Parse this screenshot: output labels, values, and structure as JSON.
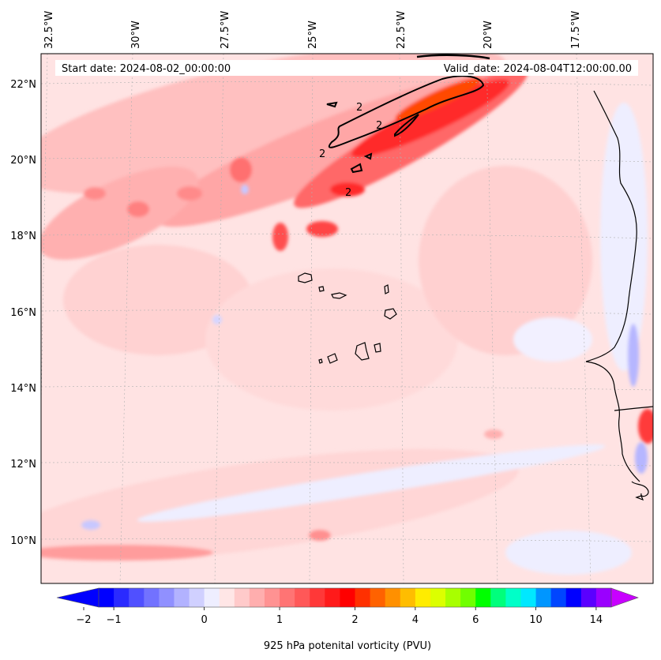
{
  "header": {
    "start_label": "Start date: 2024-08-02_00:00:00",
    "valid_label": "Valid_date: 2024-08-04T12:00:00.00"
  },
  "longitude_labels": [
    "32.5°W",
    "30°W",
    "27.5°W",
    "25°W",
    "22.5°W",
    "20°W",
    "17.5°W"
  ],
  "latitude_labels": [
    "22°N",
    "20°N",
    "18°N",
    "16°N",
    "14°N",
    "12°N",
    "10°N"
  ],
  "contour_labels": [
    "2",
    "2",
    "2",
    "2"
  ],
  "colorbar": {
    "title": "925 hPa potenital vorticity (PVU)",
    "tick_labels": [
      "−2",
      "−1",
      "0",
      "1",
      "2",
      "4",
      "6",
      "10",
      "14"
    ],
    "colors": [
      "#0000ff",
      "#2a2aff",
      "#5050ff",
      "#7272ff",
      "#9090ff",
      "#b2b2ff",
      "#d0d0ff",
      "#eeeeff",
      "#ffe6e6",
      "#ffcaca",
      "#ffaeae",
      "#ff9292",
      "#ff7474",
      "#ff5858",
      "#ff3838",
      "#ff1a1a",
      "#ff0000",
      "#ff3000",
      "#ff6200",
      "#ff9000",
      "#ffbd00",
      "#ffec00",
      "#dcff00",
      "#a8ff00",
      "#70ff00",
      "#00ff00",
      "#00ff7c",
      "#00ffc8",
      "#00e8ff",
      "#0096ff",
      "#0046ff",
      "#0000ff",
      "#5a00ff",
      "#9a00ff"
    ],
    "arrow_low_color": "#0000ff",
    "arrow_high_color": "#c800ff"
  },
  "chart_data": {
    "type": "heatmap",
    "title": "925 hPa potenital vorticity (PVU)",
    "start_date": "2024-08-02_00:00:00",
    "valid_date": "2024-08-04T12:00:00.00",
    "lon_range_deg": [
      -33.0,
      -15.0
    ],
    "lat_range_deg": [
      8.9,
      22.8
    ],
    "colorbar_ticks": [
      -2,
      -1,
      0,
      1,
      2,
      4,
      6,
      10,
      14
    ],
    "contour_level_pvu": 2,
    "max_region": "NE band near 20–22°N, 21–19°W"
  }
}
